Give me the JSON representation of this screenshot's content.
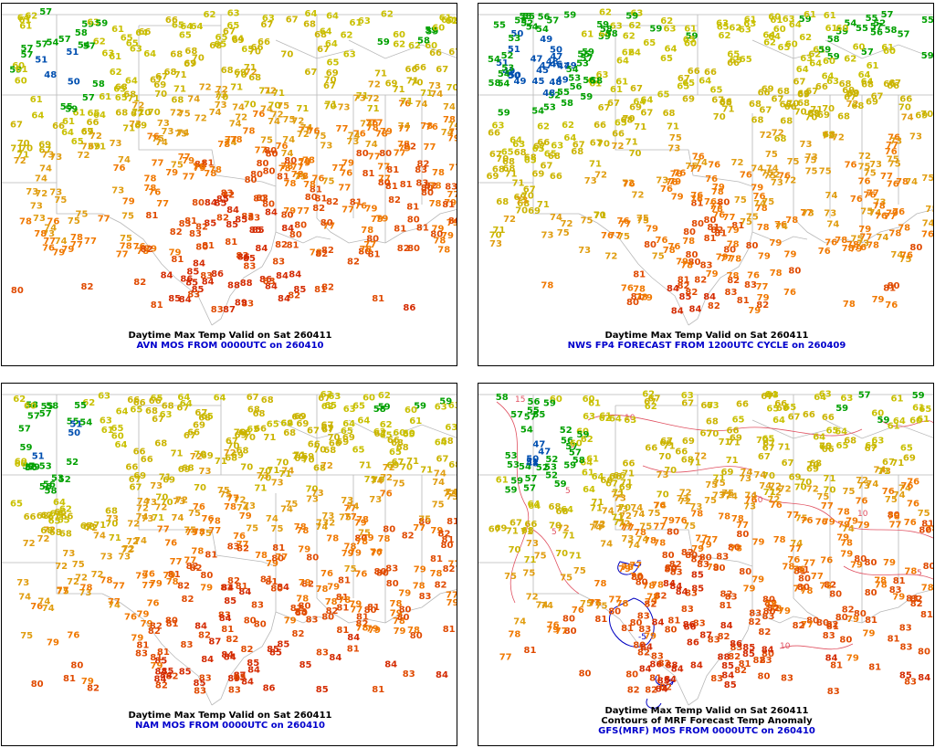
{
  "colors": {
    "ge84": "#d42a00",
    "80_83": "#e04a00",
    "76_79": "#f07800",
    "72_75": "#e09d10",
    "66_71": "#cbb400",
    "60_65": "#c9c000",
    "52_59": "#00a000",
    "lt52": "#004fb0",
    "border": "#b8b8b8",
    "anomaly_warm": "#e05060",
    "anomaly_cold": "#0000c0",
    "title": "#000000",
    "subtitle": "#0000cc"
  },
  "panels": [
    {
      "title": "Daytime Max Temp Valid on Sat 260411",
      "subtitle": "AVN MOS FROM 0000UTC on 260410",
      "seed": 11,
      "bias": 0
    },
    {
      "title": "Daytime Max Temp Valid on Sat 260411",
      "subtitle": "NWS FP4 FORECAST FROM 1200UTC CYCLE on 260409",
      "seed": 23,
      "bias": -4
    },
    {
      "title": "Daytime Max Temp Valid on Sat 260411",
      "subtitle": "NAM MOS FROM 0000UTC on 260410",
      "seed": 37,
      "bias": 0
    },
    {
      "title": "Daytime Max Temp Valid on Sat 260411",
      "title2": "Contours of MRF Forecast Temp Anomaly",
      "subtitle": "GFS(MRF) MOS FROM 0000UTC on 260410",
      "seed": 53,
      "bias": 0,
      "anomaly_labels": [
        "10",
        "5",
        "5",
        "10",
        "10",
        "5",
        "-5",
        "-5",
        "-5",
        "15",
        "10",
        "5"
      ]
    }
  ]
}
